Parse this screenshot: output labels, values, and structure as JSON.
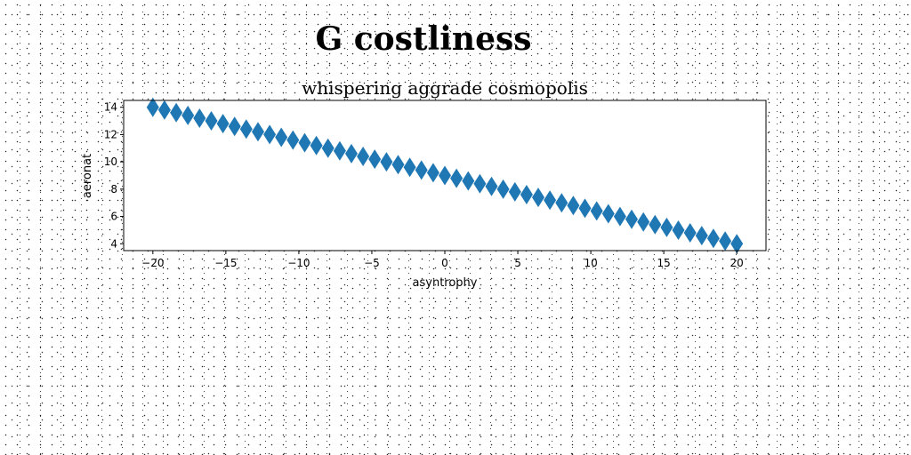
{
  "chart_data": {
    "type": "scatter",
    "suptitle": "G costliness",
    "title": "whispering aggrade cosmopolis",
    "xlabel": "asyntrophy",
    "ylabel": "aeronat",
    "xlim": [
      -22,
      22
    ],
    "ylim": [
      3.5,
      14.5
    ],
    "xticks": [
      -20,
      -15,
      -10,
      -5,
      0,
      5,
      10,
      15,
      20
    ],
    "yticks": [
      4,
      6,
      8,
      10,
      12,
      14
    ],
    "x_tick_labels": [
      "−20",
      "−15",
      "−10",
      "−5",
      "0",
      "5",
      "10",
      "15",
      "20"
    ],
    "y_tick_labels": [
      "4",
      "6",
      "8",
      "10",
      "12",
      "14"
    ],
    "marker": "diamond",
    "color": "#1f77b4",
    "grid": false,
    "series": [
      {
        "x": [
          -20,
          -19.2,
          -18.4,
          -17.6,
          -16.8,
          -16,
          -15.2,
          -14.4,
          -13.6,
          -12.8,
          -12,
          -11.2,
          -10.4,
          -9.6,
          -8.8,
          -8,
          -7.2,
          -6.4,
          -5.6,
          -4.8,
          -4,
          -3.2,
          -2.4,
          -1.6,
          -0.8,
          0,
          0.8,
          1.6,
          2.4,
          3.2,
          4,
          4.8,
          5.6,
          6.4,
          7.2,
          8,
          8.8,
          9.6,
          10.4,
          11.2,
          12,
          12.8,
          13.6,
          14.4,
          15.2,
          16,
          16.8,
          17.6,
          18.4,
          19.2,
          20
        ],
        "y": [
          14,
          13.8,
          13.6,
          13.4,
          13.2,
          13,
          12.8,
          12.6,
          12.4,
          12.2,
          12,
          11.8,
          11.6,
          11.4,
          11.2,
          11,
          10.8,
          10.6,
          10.4,
          10.2,
          10,
          9.8,
          9.6,
          9.4,
          9.2,
          9,
          8.8,
          8.6,
          8.4,
          8.2,
          8,
          7.8,
          7.6,
          7.4,
          7.2,
          7,
          6.8,
          6.6,
          6.4,
          6.2,
          6,
          5.8,
          5.6,
          5.4,
          5.2,
          5,
          4.8,
          4.6,
          4.4,
          4.2,
          4
        ]
      }
    ]
  }
}
